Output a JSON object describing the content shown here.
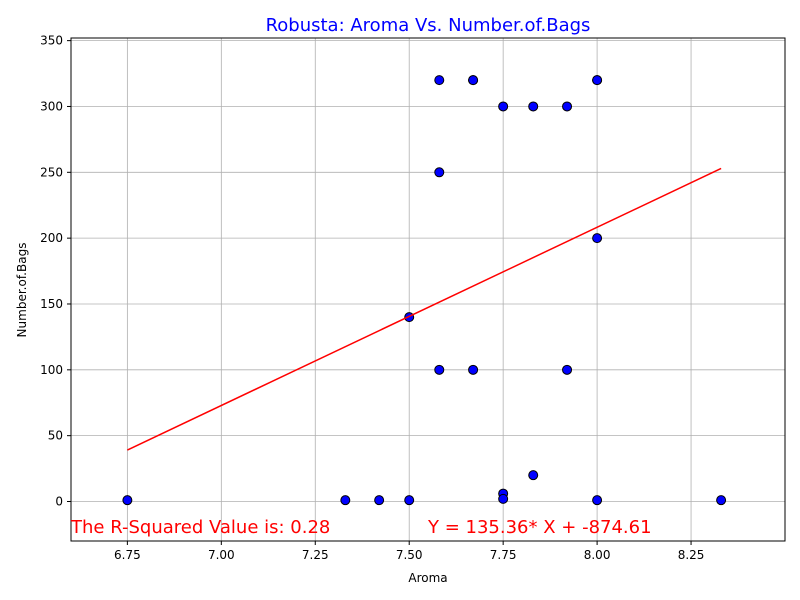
{
  "chart_data": {
    "type": "scatter",
    "title": "Robusta: Aroma Vs. Number.of.Bags",
    "xlabel": "Aroma",
    "ylabel": "Number.of.Bags",
    "xlim": [
      6.6,
      8.5
    ],
    "ylim": [
      -30,
      352
    ],
    "xticks": [
      6.75,
      7.0,
      7.25,
      7.5,
      7.75,
      8.0,
      8.25
    ],
    "xtick_labels": [
      "6.75",
      "7.00",
      "7.25",
      "7.50",
      "7.75",
      "8.00",
      "8.25"
    ],
    "yticks": [
      0,
      50,
      100,
      150,
      200,
      250,
      300,
      350
    ],
    "ytick_labels": [
      "0",
      "50",
      "100",
      "150",
      "200",
      "250",
      "300",
      "350"
    ],
    "grid": true,
    "points": [
      {
        "x": 6.75,
        "y": 1
      },
      {
        "x": 7.33,
        "y": 1
      },
      {
        "x": 7.42,
        "y": 1
      },
      {
        "x": 7.5,
        "y": 1
      },
      {
        "x": 7.5,
        "y": 140
      },
      {
        "x": 7.58,
        "y": 320
      },
      {
        "x": 7.58,
        "y": 250
      },
      {
        "x": 7.58,
        "y": 100
      },
      {
        "x": 7.67,
        "y": 320
      },
      {
        "x": 7.67,
        "y": 320
      },
      {
        "x": 7.67,
        "y": 100
      },
      {
        "x": 7.75,
        "y": 300
      },
      {
        "x": 7.75,
        "y": 6
      },
      {
        "x": 7.75,
        "y": 2
      },
      {
        "x": 7.83,
        "y": 300
      },
      {
        "x": 7.83,
        "y": 20
      },
      {
        "x": 7.92,
        "y": 300
      },
      {
        "x": 7.92,
        "y": 100
      },
      {
        "x": 8.0,
        "y": 320
      },
      {
        "x": 8.0,
        "y": 320
      },
      {
        "x": 8.0,
        "y": 200
      },
      {
        "x": 8.0,
        "y": 1
      },
      {
        "x": 8.33,
        "y": 1
      }
    ],
    "regression": {
      "slope": 135.36,
      "intercept": -874.61,
      "x_start": 6.75,
      "x_end": 8.33
    },
    "annotations": {
      "r_squared": "The R-Squared Value is: 0.28",
      "equation": "Y = 135.36* X + -874.61"
    },
    "colors": {
      "title": "#0000ff",
      "marker_fill": "#0000ff",
      "marker_edge": "#000000",
      "regression_line": "#ff0000",
      "annotation": "#ff0000",
      "grid": "#b0b0b0"
    }
  }
}
